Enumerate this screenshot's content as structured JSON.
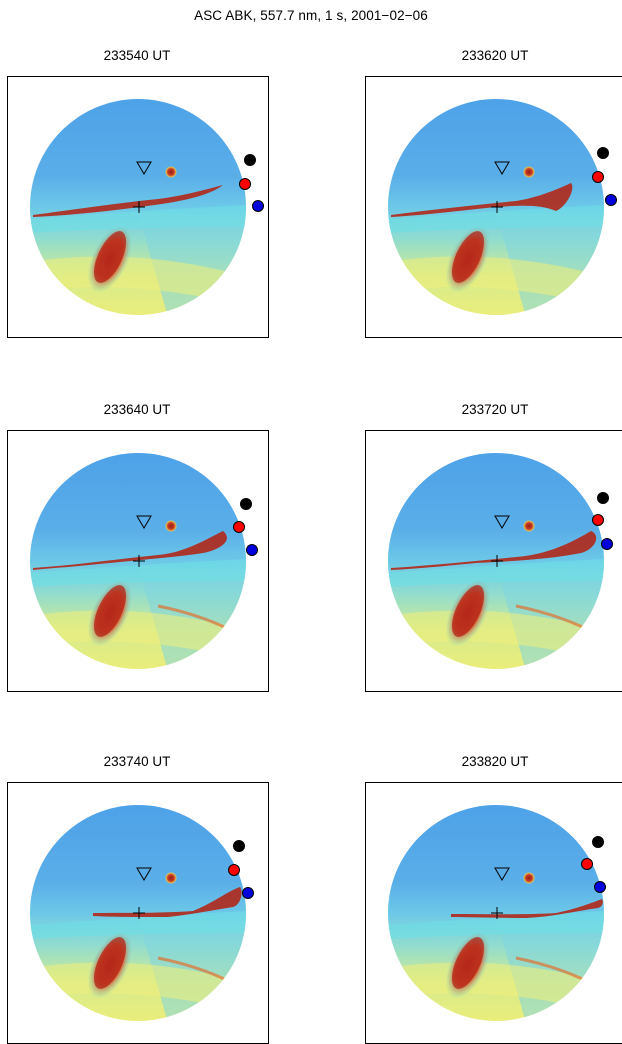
{
  "title": "ASC ABK, 557.7 nm, 1 s, 2001−02−06",
  "colors": {
    "black_marker": "#000000",
    "red_marker": "#ff0000",
    "blue_marker": "#0000dd"
  },
  "panels": [
    {
      "label": "233540 UT",
      "arc_phase": 0
    },
    {
      "label": "233620 UT",
      "arc_phase": 1
    },
    {
      "label": "233640 UT",
      "arc_phase": 2
    },
    {
      "label": "233720 UT",
      "arc_phase": 3
    },
    {
      "label": "233740 UT",
      "arc_phase": 4
    },
    {
      "label": "233820 UT",
      "arc_phase": 5
    }
  ]
}
